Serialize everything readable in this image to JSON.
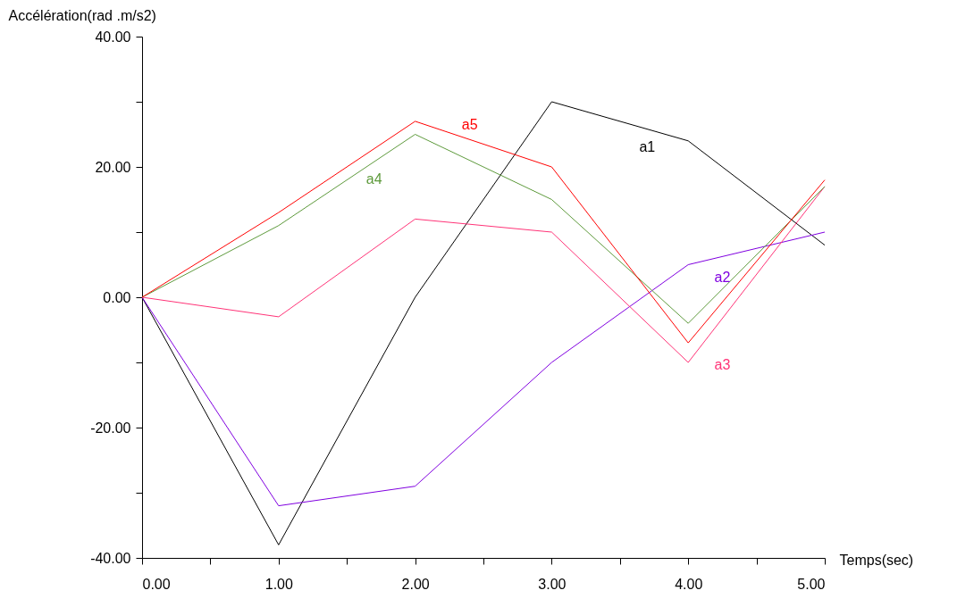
{
  "chart_data": {
    "type": "line",
    "xlabel": "Temps(sec)",
    "ylabel": "Accélération(rad .m/s2)",
    "x": [
      0,
      1,
      2,
      3,
      4,
      5
    ],
    "series": [
      {
        "name": "a1",
        "color": "#000000",
        "values": [
          0,
          -38,
          0,
          30,
          24,
          8
        ]
      },
      {
        "name": "a2",
        "color": "#8000e0",
        "values": [
          0,
          -32,
          -29,
          -10,
          5,
          10
        ]
      },
      {
        "name": "a3",
        "color": "#ff3377",
        "values": [
          0,
          -3,
          12,
          10,
          -10,
          17
        ]
      },
      {
        "name": "a4",
        "color": "#5e9a3c",
        "values": [
          0,
          11,
          25,
          15,
          -4,
          17
        ]
      },
      {
        "name": "a5",
        "color": "#ff0000",
        "values": [
          0,
          13,
          27,
          20,
          -7,
          18
        ]
      }
    ],
    "xlim": [
      0,
      5
    ],
    "ylim": [
      -40,
      40
    ],
    "xticks": [
      {
        "value": 0,
        "label": "0.00"
      },
      {
        "value": 0.5,
        "label": null
      },
      {
        "value": 1,
        "label": "1.00"
      },
      {
        "value": 1.5,
        "label": null
      },
      {
        "value": 2,
        "label": "2.00"
      },
      {
        "value": 2.5,
        "label": null
      },
      {
        "value": 3,
        "label": "3.00"
      },
      {
        "value": 3.5,
        "label": null
      },
      {
        "value": 4,
        "label": "4.00"
      },
      {
        "value": 4.5,
        "label": null
      },
      {
        "value": 5,
        "label": "5.00"
      }
    ],
    "yticks": [
      {
        "value": -40,
        "label": "-40.00"
      },
      {
        "value": -30,
        "label": null
      },
      {
        "value": -20,
        "label": "-20.00"
      },
      {
        "value": -10,
        "label": null
      },
      {
        "value": 0,
        "label": "0.00"
      },
      {
        "value": 10,
        "label": null
      },
      {
        "value": 20,
        "label": "20.00"
      },
      {
        "value": 30,
        "label": null
      },
      {
        "value": 40,
        "label": "40.00"
      }
    ],
    "grid": false,
    "legend": false,
    "marker": "none",
    "line_style": "solid"
  }
}
